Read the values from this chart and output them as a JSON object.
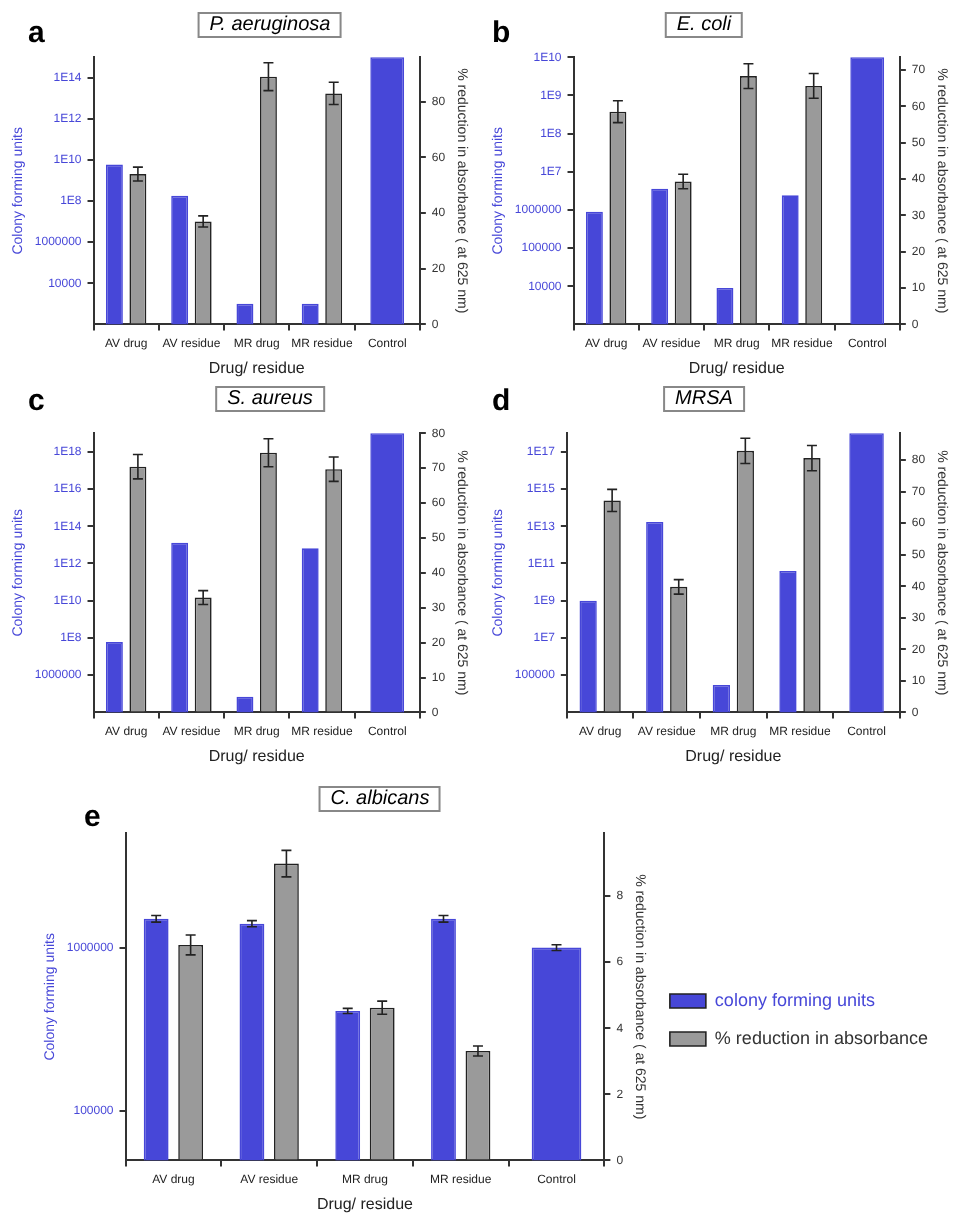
{
  "chart_data": [
    {
      "type": "bar",
      "title": "P. aeruginosa",
      "annotations": [
        "a"
      ],
      "xlabel": "Drug/ residue",
      "ylabel": "Colony forming units",
      "y2label": "% reduction in absorbance ( at 625 nm)",
      "categories": [
        "AV drug",
        "AV residue",
        "MR drug",
        "MR residue",
        "Control"
      ],
      "series": [
        {
          "color": "#4747d8",
          "values": [
            6000000000.0,
            180000000.0,
            1000,
            1000,
            1000000000000000.0
          ]
        },
        {
          "color": "#9a9a9a",
          "axis": "y2",
          "values": [
            54,
            37,
            89,
            83,
            null
          ],
          "errors": [
            2.5,
            2,
            5,
            4,
            null
          ]
        }
      ],
      "log": "y",
      "ylim": [
        100,
        1000000000000000.0
      ],
      "yticks": [
        10000,
        1000000,
        {
          "value": 100000000.0,
          "label": "1E8"
        },
        {
          "value": 10000000000.0,
          "label": "1E10"
        },
        {
          "value": 1000000000000.0,
          "label": "1E12"
        },
        {
          "value": 100000000000000.0,
          "label": "1E14"
        }
      ],
      "y2lim": [
        0,
        96
      ],
      "y2ticks": [
        0,
        20,
        40,
        60,
        80
      ],
      "legend": false
    },
    {
      "type": "bar",
      "title": "E. coli",
      "annotations": [
        "b"
      ],
      "xlabel": "Drug/ residue",
      "ylabel": "Colony forming units",
      "y2label": "% reduction in absorbance ( at 625 nm)",
      "categories": [
        "AV drug",
        "AV residue",
        "MR drug",
        "MR residue",
        "Control"
      ],
      "series": [
        {
          "color": "#4747d8",
          "values": [
            900000,
            3600000,
            9000,
            2400000,
            10000000000.0
          ]
        },
        {
          "color": "#9a9a9a",
          "axis": "y2",
          "values": [
            58.5,
            39.3,
            68.3,
            65.6,
            null
          ],
          "errors": [
            3,
            2,
            3.4,
            3.4,
            null
          ]
        }
      ],
      "log": "y",
      "ylim": [
        1000,
        10000000000.0
      ],
      "yticks": [
        10000,
        100000,
        1000000,
        {
          "value": 10000000.0,
          "label": "1E7"
        },
        {
          "value": 100000000.0,
          "label": "1E8"
        },
        {
          "value": 1000000000.0,
          "label": "1E9"
        },
        {
          "value": 10000000000.0,
          "label": "1E10"
        }
      ],
      "y2lim": [
        0,
        73.5
      ],
      "y2ticks": [
        0,
        10,
        20,
        30,
        40,
        50,
        60,
        70
      ],
      "legend": false
    },
    {
      "type": "bar",
      "title": "S. aureus",
      "annotations": [
        "c"
      ],
      "xlabel": "Drug/ residue",
      "ylabel": "Colony forming units",
      "y2label": "% reduction in absorbance ( at 625 nm)",
      "categories": [
        "AV drug",
        "AV residue",
        "MR drug",
        "MR residue",
        "Control"
      ],
      "series": [
        {
          "color": "#4747d8",
          "values": [
            60000000.0,
            13000000000000.0,
            70000,
            6500000000000.0,
            1e+19
          ]
        },
        {
          "color": "#9a9a9a",
          "axis": "y2",
          "values": [
            70.4,
            32.9,
            74.4,
            69.7,
            null
          ],
          "errors": [
            3.5,
            2,
            4,
            3.5,
            null
          ]
        }
      ],
      "log": "y",
      "ylim": [
        10000,
        1e+19
      ],
      "yticks": [
        1000000,
        {
          "value": 100000000.0,
          "label": "1E8"
        },
        {
          "value": 10000000000.0,
          "label": "1E10"
        },
        {
          "value": 1000000000000.0,
          "label": "1E12"
        },
        {
          "value": 100000000000000.0,
          "label": "1E14"
        },
        {
          "value": 1e+16,
          "label": "1E16"
        },
        {
          "value": 1e+18,
          "label": "1E18"
        }
      ],
      "y2lim": [
        0,
        80
      ],
      "y2ticks": [
        0,
        10,
        20,
        30,
        40,
        50,
        60,
        70,
        80
      ],
      "legend": false
    },
    {
      "type": "bar",
      "title": "MRSA",
      "annotations": [
        "d"
      ],
      "xlabel": "Drug/ residue",
      "ylabel": "Colony forming units",
      "y2label": "% reduction in absorbance ( at 625 nm)",
      "categories": [
        "AV drug",
        "AV residue",
        "MR drug",
        "MR residue",
        "Control"
      ],
      "series": [
        {
          "color": "#4747d8",
          "values": [
            1000000000.0,
            17000000000000.0,
            30000,
            40000000000.0,
            1e+18
          ]
        },
        {
          "color": "#9a9a9a",
          "axis": "y2",
          "values": [
            67.2,
            39.8,
            82.9,
            80.6,
            null
          ],
          "errors": [
            3.5,
            2.3,
            4,
            4,
            null
          ]
        }
      ],
      "log": "y",
      "ylim": [
        1000,
        1e+18
      ],
      "yticks": [
        100000,
        {
          "value": 10000000.0,
          "label": "1E7"
        },
        {
          "value": 1000000000.0,
          "label": "1E9"
        },
        {
          "value": 100000000000.0,
          "label": "1E11"
        },
        {
          "value": 10000000000000.0,
          "label": "1E13"
        },
        {
          "value": 1000000000000000.0,
          "label": "1E15"
        },
        {
          "value": 1e+17,
          "label": "1E17"
        }
      ],
      "y2lim": [
        0,
        88.5
      ],
      "y2ticks": [
        0,
        10,
        20,
        30,
        40,
        50,
        60,
        70,
        80
      ],
      "legend": false
    },
    {
      "type": "bar",
      "title": "C. albicans",
      "annotations": [
        "e"
      ],
      "xlabel": "Drug/ residue",
      "ylabel": "Colony forming units",
      "y2label": "% reduction in absorbance ( at 625 nm)",
      "categories": [
        "AV drug",
        "AV residue",
        "MR drug",
        "MR residue",
        "Control"
      ],
      "series": [
        {
          "name": "colony forming units",
          "color": "#4747d8",
          "values": [
            1500000,
            1400000,
            410000,
            1500000,
            1000000
          ],
          "errors": [
            70000,
            60000,
            15000,
            70000,
            40000
          ]
        },
        {
          "name": "% reduction in absorbance",
          "color": "#9a9a9a",
          "axis": "y2",
          "values": [
            6.52,
            8.98,
            4.62,
            3.31,
            null
          ],
          "errors": [
            0.3,
            0.4,
            0.2,
            0.15,
            null
          ]
        }
      ],
      "log": "y",
      "ylim": [
        50000,
        5000000
      ],
      "yticks": [
        100000,
        1000000
      ],
      "y2lim": [
        0,
        9.9
      ],
      "y2ticks": [
        0,
        2,
        4,
        6,
        8
      ],
      "legend": "right"
    }
  ]
}
